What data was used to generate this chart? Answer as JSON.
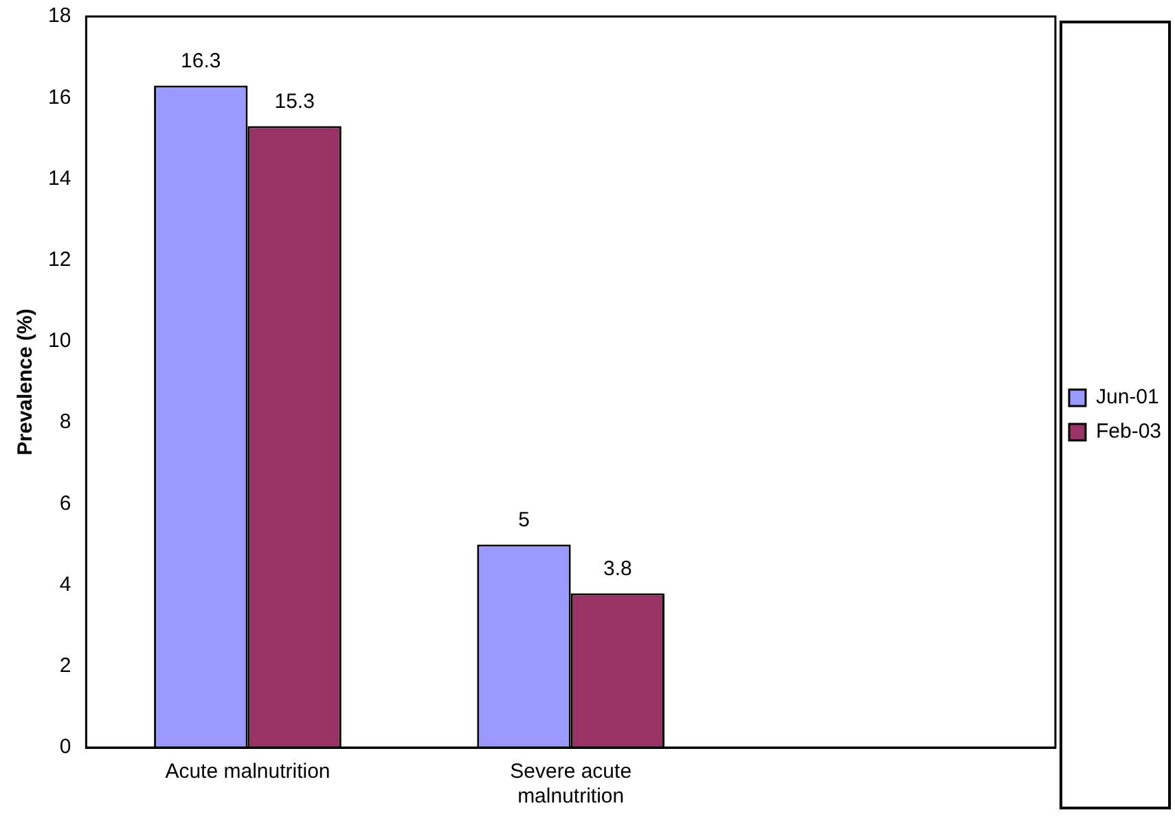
{
  "chart_data": {
    "type": "bar",
    "ylabel": "Prevalence (%)",
    "categories": [
      "Acute malnutrition",
      "Severe acute malnutrition",
      null
    ],
    "series": [
      {
        "name": "Jun-01",
        "color": "#9999ff",
        "values": [
          16.3,
          5,
          null
        ]
      },
      {
        "name": "Feb-03",
        "color": "#993366",
        "values": [
          15.3,
          3.8,
          null
        ]
      }
    ],
    "ylim": [
      0,
      18
    ],
    "yticks": [
      0,
      2,
      4,
      6,
      8,
      10,
      12,
      14,
      16,
      18
    ],
    "data_labels": true,
    "legend": "right"
  }
}
